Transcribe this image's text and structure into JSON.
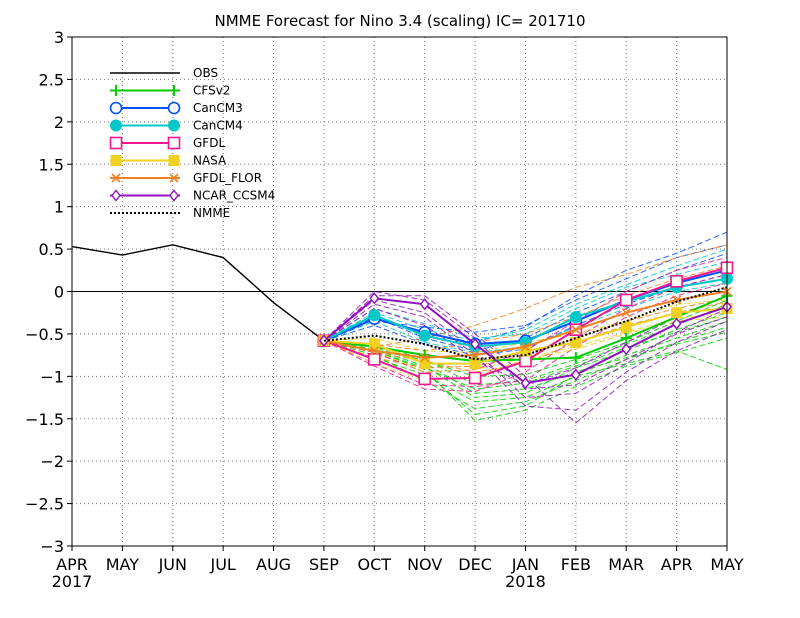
{
  "chart_data": {
    "type": "line",
    "title": "NMME Forecast for Nino 3.4 (scaling) IC= 201710",
    "categories": [
      "APR",
      "MAY",
      "JUN",
      "JUL",
      "AUG",
      "SEP",
      "OCT",
      "NOV",
      "DEC",
      "JAN",
      "FEB",
      "MAR",
      "APR",
      "MAY"
    ],
    "year_labels": [
      {
        "label": "2017",
        "index": 0
      },
      {
        "label": "2018",
        "index": 9
      }
    ],
    "yticks": [
      "3",
      "2.5",
      "2",
      "1.5",
      "1",
      "0.5",
      "0",
      "−0.5",
      "−1",
      "−1.5",
      "−2",
      "−2.5",
      "−3"
    ],
    "ylim": [
      -3,
      3
    ],
    "grid": true,
    "legend_position": "top-left",
    "series": [
      {
        "name": "OBS",
        "color": "#000000",
        "marker": "none",
        "dash": "",
        "x": [
          0,
          1,
          2,
          3,
          4,
          5
        ],
        "values": [
          0.53,
          0.43,
          0.55,
          0.4,
          -0.13,
          -0.58
        ]
      },
      {
        "name": "CFSv2",
        "color": "#00cc00",
        "marker": "plus",
        "dash": "",
        "x": [
          5,
          6,
          7,
          8,
          9,
          10,
          11,
          12,
          13
        ],
        "values": [
          -0.58,
          -0.65,
          -0.75,
          -0.82,
          -0.8,
          -0.78,
          -0.55,
          -0.3,
          -0.05
        ]
      },
      {
        "name": "CanCM3",
        "color": "#0050ff",
        "marker": "circle-open",
        "dash": "",
        "x": [
          5,
          6,
          7,
          8,
          9,
          10,
          11,
          12,
          13
        ],
        "values": [
          -0.58,
          -0.32,
          -0.48,
          -0.62,
          -0.58,
          -0.35,
          -0.1,
          0.1,
          0.25
        ]
      },
      {
        "name": "CanCM4",
        "color": "#00c8c8",
        "marker": "circle-filled",
        "dash": "",
        "x": [
          5,
          6,
          7,
          8,
          9,
          10,
          11,
          12,
          13
        ],
        "values": [
          -0.58,
          -0.28,
          -0.52,
          -0.65,
          -0.6,
          -0.3,
          -0.12,
          0.05,
          0.15
        ]
      },
      {
        "name": "GFDL",
        "color": "#f01890",
        "marker": "square-open",
        "dash": "",
        "x": [
          5,
          6,
          7,
          8,
          9,
          10,
          11,
          12,
          13
        ],
        "values": [
          -0.58,
          -0.8,
          -1.03,
          -1.02,
          -0.82,
          -0.45,
          -0.1,
          0.12,
          0.28
        ]
      },
      {
        "name": "NASA",
        "color": "#f0d020",
        "marker": "square-filled",
        "dash": "",
        "x": [
          5,
          6,
          7,
          8,
          9,
          10,
          11,
          12,
          13
        ],
        "values": [
          -0.58,
          -0.62,
          -0.85,
          -0.85,
          -0.7,
          -0.6,
          -0.42,
          -0.25,
          -0.2
        ]
      },
      {
        "name": "GFDL_FLOR",
        "color": "#f08020",
        "marker": "x",
        "dash": "",
        "x": [
          5,
          6,
          7,
          8,
          9,
          10,
          11,
          12,
          13
        ],
        "values": [
          -0.58,
          -0.7,
          -0.78,
          -0.75,
          -0.65,
          -0.45,
          -0.25,
          -0.1,
          0.0
        ]
      },
      {
        "name": "NCAR_CCSM4",
        "color": "#9010c0",
        "marker": "diamond",
        "dash": "",
        "x": [
          5,
          6,
          7,
          8,
          9,
          10,
          11,
          12,
          13
        ],
        "values": [
          -0.58,
          -0.08,
          -0.15,
          -0.62,
          -1.08,
          -0.98,
          -0.68,
          -0.38,
          -0.18
        ]
      },
      {
        "name": "NMME",
        "color": "#000000",
        "marker": "none",
        "dash": "2,2",
        "x": [
          5,
          6,
          7,
          8,
          9,
          10,
          11,
          12,
          13
        ],
        "values": [
          -0.58,
          -0.52,
          -0.62,
          -0.8,
          -0.75,
          -0.55,
          -0.35,
          -0.12,
          0.05
        ]
      }
    ],
    "members": [
      {
        "color": "#00cc00",
        "values": [
          -0.58,
          -0.72,
          -0.95,
          -1.45,
          -1.35,
          -0.98,
          -0.75,
          -0.55,
          -0.35
        ]
      },
      {
        "color": "#00cc00",
        "values": [
          -0.58,
          -0.68,
          -0.88,
          -1.25,
          -1.2,
          -0.9,
          -0.7,
          -0.45,
          -0.25
        ]
      },
      {
        "color": "#00cc00",
        "values": [
          -0.58,
          -0.75,
          -1.05,
          -1.38,
          -1.3,
          -1.05,
          -0.8,
          -0.6,
          -0.42
        ]
      },
      {
        "color": "#00cc00",
        "values": [
          -0.58,
          -0.62,
          -0.8,
          -1.1,
          -1.05,
          -0.85,
          -0.62,
          -0.4,
          -0.15
        ]
      },
      {
        "color": "#00cc00",
        "values": [
          -0.58,
          -0.7,
          -0.92,
          -1.52,
          -1.4,
          -1.12,
          -0.88,
          -0.72,
          -0.55
        ]
      },
      {
        "color": "#00cc00",
        "values": [
          -0.58,
          -0.66,
          -0.84,
          -1.2,
          -1.15,
          -0.95,
          -0.78,
          -0.62,
          -0.48
        ]
      },
      {
        "color": "#00cc00",
        "values": [
          -0.58,
          -0.78,
          -0.98,
          -1.3,
          -1.25,
          -1.0,
          -0.85,
          -0.7,
          -0.92
        ]
      },
      {
        "color": "#00cc00",
        "values": [
          -0.58,
          -0.64,
          -0.82,
          -1.0,
          -0.98,
          -0.8,
          -0.6,
          -0.35,
          -0.1
        ]
      },
      {
        "color": "#00cc00",
        "values": [
          -0.58,
          -0.7,
          -0.9,
          -1.15,
          -1.08,
          -0.88,
          -0.66,
          -0.48,
          -0.3
        ]
      },
      {
        "color": "#0050ff",
        "values": [
          -0.58,
          -0.35,
          -0.42,
          -0.48,
          -0.4,
          -0.1,
          0.15,
          0.4,
          0.55
        ]
      },
      {
        "color": "#0050ff",
        "values": [
          -0.58,
          -0.3,
          -0.55,
          -0.7,
          -0.55,
          -0.25,
          0.0,
          0.25,
          0.45
        ]
      },
      {
        "color": "#0050ff",
        "values": [
          -0.58,
          -0.28,
          -0.5,
          -0.6,
          -0.42,
          -0.05,
          0.25,
          0.45,
          0.7
        ]
      },
      {
        "color": "#0050ff",
        "values": [
          -0.58,
          -0.4,
          -0.62,
          -0.75,
          -0.68,
          -0.4,
          -0.15,
          0.05,
          0.2
        ]
      },
      {
        "color": "#00c8c8",
        "values": [
          -0.58,
          -0.25,
          -0.45,
          -0.58,
          -0.45,
          -0.15,
          0.08,
          0.3,
          0.5
        ]
      },
      {
        "color": "#00c8c8",
        "values": [
          -0.58,
          -0.35,
          -0.6,
          -0.72,
          -0.65,
          -0.42,
          -0.2,
          0.0,
          0.1
        ]
      },
      {
        "color": "#00c8c8",
        "values": [
          -0.58,
          -0.2,
          -0.38,
          -0.55,
          -0.5,
          -0.2,
          0.05,
          0.2,
          0.35
        ]
      },
      {
        "color": "#f01890",
        "values": [
          -0.58,
          -0.88,
          -1.15,
          -1.18,
          -0.95,
          -0.55,
          -0.2,
          0.05,
          0.2
        ]
      },
      {
        "color": "#f01890",
        "values": [
          -0.58,
          -0.72,
          -0.95,
          -0.92,
          -0.7,
          -0.35,
          0.0,
          0.25,
          0.4
        ]
      },
      {
        "color": "#f01890",
        "values": [
          -0.58,
          -0.85,
          -1.1,
          -1.12,
          -1.05,
          -0.65,
          -0.3,
          -0.05,
          0.1
        ]
      },
      {
        "color": "#f0d020",
        "values": [
          -0.58,
          -0.85,
          -1.05,
          -1.0,
          -0.8,
          -0.68,
          -0.5,
          -0.35,
          -0.3
        ]
      },
      {
        "color": "#f0d020",
        "values": [
          -0.58,
          -0.55,
          -0.7,
          -0.72,
          -0.6,
          -0.5,
          -0.35,
          -0.15,
          -0.1
        ]
      },
      {
        "color": "#f0d020",
        "values": [
          -0.58,
          -0.7,
          -0.95,
          -0.92,
          -0.78,
          -0.65,
          -0.48,
          -0.32,
          -0.25
        ]
      },
      {
        "color": "#f08020",
        "values": [
          -0.58,
          -0.65,
          -0.55,
          -0.4,
          -0.2,
          0.05,
          0.2,
          0.4,
          0.55
        ]
      },
      {
        "color": "#f08020",
        "values": [
          -0.58,
          -0.78,
          -0.9,
          -0.88,
          -0.75,
          -0.55,
          -0.35,
          -0.2,
          -0.08
        ]
      },
      {
        "color": "#f08020",
        "values": [
          -0.58,
          -0.62,
          -0.7,
          -0.6,
          -0.5,
          -0.3,
          -0.05,
          0.15,
          0.3
        ]
      },
      {
        "color": "#f08020",
        "values": [
          -0.58,
          -0.72,
          -0.82,
          -0.95,
          -0.85,
          -0.6,
          -0.4,
          -0.25,
          -0.12
        ]
      },
      {
        "color": "#9010c0",
        "values": [
          -0.58,
          0.0,
          -0.1,
          -0.55,
          -1.15,
          -1.1,
          -0.8,
          -0.5,
          -0.3
        ]
      },
      {
        "color": "#9010c0",
        "values": [
          -0.58,
          -0.1,
          -0.25,
          -0.7,
          -1.25,
          -1.2,
          -0.85,
          -0.48,
          -0.2
        ]
      },
      {
        "color": "#9010c0",
        "values": [
          -0.58,
          -0.15,
          -0.3,
          -0.75,
          -1.35,
          -1.4,
          -0.95,
          -0.6,
          -0.35
        ]
      },
      {
        "color": "#9010c0",
        "values": [
          -0.58,
          -0.05,
          -0.05,
          -0.5,
          -1.0,
          -1.55,
          -1.05,
          -0.7,
          -0.45
        ]
      },
      {
        "color": "#9010c0",
        "values": [
          -0.58,
          -0.2,
          -0.4,
          -0.8,
          -1.1,
          -0.9,
          -0.6,
          -0.3,
          -0.05
        ]
      }
    ]
  }
}
